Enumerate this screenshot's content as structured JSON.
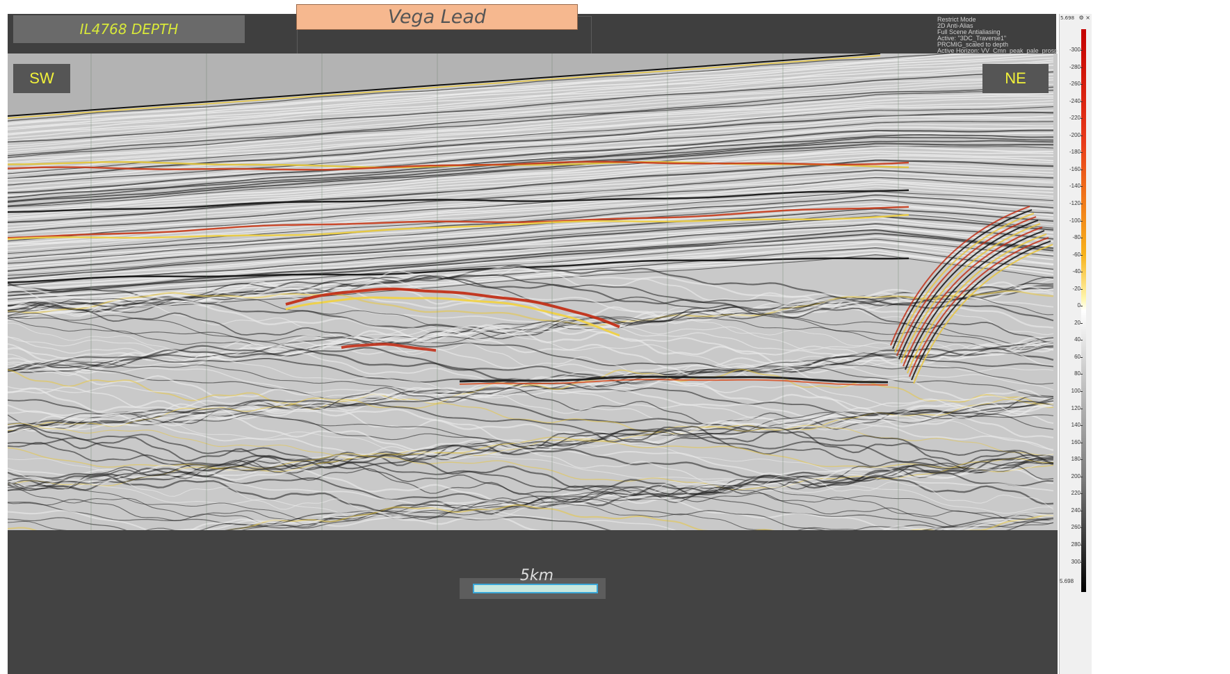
{
  "window": {
    "line_label": "IL4768 DEPTH",
    "title": "Vega Lead",
    "info_lines": [
      "Restrict Mode",
      "2D Anti-Alias",
      "Full Scene Antialiasing",
      "Active: \"3DC_Traverse1\"",
      "PRCMIG_scaled to depth",
      "Active Horizon: VV_Cmn_peak_pale_prosp"
    ]
  },
  "section": {
    "left_direction": "SW",
    "right_direction": "NE"
  },
  "scale": {
    "label": "5km"
  },
  "colorbar": {
    "top_value": "5.698",
    "bottom_value": "5.698",
    "ticks": [
      "-300",
      "-280",
      "-260",
      "-240",
      "-220",
      "-200",
      "-180",
      "-160",
      "-140",
      "-120",
      "-100",
      "-80",
      "-60",
      "-40",
      "-20",
      "0",
      "20",
      "40",
      "60",
      "80",
      "100",
      "120",
      "140",
      "160",
      "180",
      "200",
      "220",
      "240",
      "260",
      "280",
      "300"
    ],
    "icons": "⚙ ×",
    "colors": [
      "#c40000",
      "#f7b21b",
      "#ffffff",
      "#000000"
    ]
  },
  "colors": {
    "label_text": "#d8e83a",
    "direction_text": "#f2f23a",
    "title_bg": "#f6b88f"
  }
}
